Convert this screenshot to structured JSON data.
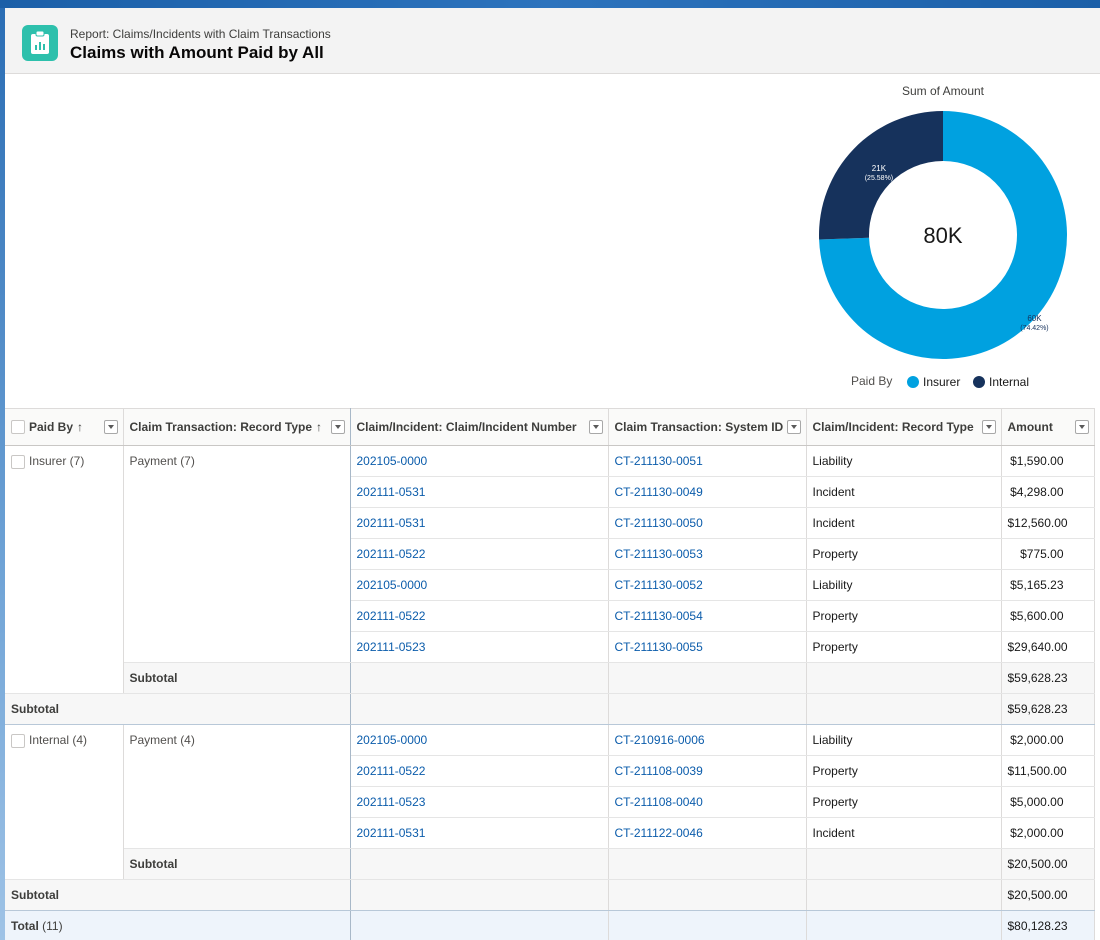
{
  "header": {
    "subtitle": "Report: Claims/Incidents with Claim Transactions",
    "title": "Claims with Amount Paid by All"
  },
  "chart_data": {
    "type": "donut",
    "title": "Sum of Amount",
    "center_label": "80K",
    "legend_title": "Paid By",
    "legend_position": "bottom",
    "series": [
      {
        "name": "Insurer",
        "value": 59628.23,
        "label": "60K",
        "percent_label": "(74.42%)",
        "color": "#00a1e0"
      },
      {
        "name": "Internal",
        "value": 20500.0,
        "label": "21K",
        "percent_label": "(25.58%)",
        "color": "#16325c"
      }
    ]
  },
  "table": {
    "columns": [
      {
        "label": "Paid By",
        "sort": "↑",
        "checkbox": true
      },
      {
        "label": "Claim Transaction: Record Type",
        "sort": "↑"
      },
      {
        "label": "Claim/Incident: Claim/Incident Number",
        "sort": ""
      },
      {
        "label": "Claim Transaction: System ID",
        "sort": ""
      },
      {
        "label": "Claim/Incident: Record Type",
        "sort": ""
      },
      {
        "label": "Amount",
        "sort": ""
      }
    ],
    "groups": [
      {
        "paid_by": "Insurer (7)",
        "record_type": "Payment (7)",
        "rows": [
          {
            "number": "202105-0000",
            "system_id": "CT-211130-0051",
            "type": "Liability",
            "amount": "$1,590.00"
          },
          {
            "number": "202111-0531",
            "system_id": "CT-211130-0049",
            "type": "Incident",
            "amount": "$4,298.00"
          },
          {
            "number": "202111-0531",
            "system_id": "CT-211130-0050",
            "type": "Incident",
            "amount": "$12,560.00"
          },
          {
            "number": "202111-0522",
            "system_id": "CT-211130-0053",
            "type": "Property",
            "amount": "$775.00"
          },
          {
            "number": "202105-0000",
            "system_id": "CT-211130-0052",
            "type": "Liability",
            "amount": "$5,165.23"
          },
          {
            "number": "202111-0522",
            "system_id": "CT-211130-0054",
            "type": "Property",
            "amount": "$5,600.00"
          },
          {
            "number": "202111-0523",
            "system_id": "CT-211130-0055",
            "type": "Property",
            "amount": "$29,640.00"
          }
        ],
        "subtotal_label": "Subtotal",
        "subtotal": "$59,628.23",
        "group_subtotal_label": "Subtotal",
        "group_subtotal": "$59,628.23"
      },
      {
        "paid_by": "Internal (4)",
        "record_type": "Payment (4)",
        "rows": [
          {
            "number": "202105-0000",
            "system_id": "CT-210916-0006",
            "type": "Liability",
            "amount": "$2,000.00"
          },
          {
            "number": "202111-0522",
            "system_id": "CT-211108-0039",
            "type": "Property",
            "amount": "$11,500.00"
          },
          {
            "number": "202111-0523",
            "system_id": "CT-211108-0040",
            "type": "Property",
            "amount": "$5,000.00"
          },
          {
            "number": "202111-0531",
            "system_id": "CT-211122-0046",
            "type": "Incident",
            "amount": "$2,000.00"
          }
        ],
        "subtotal_label": "Subtotal",
        "subtotal": "$20,500.00",
        "group_subtotal_label": "Subtotal",
        "group_subtotal": "$20,500.00"
      }
    ],
    "total_label": "Total",
    "total_count": "(11)",
    "total": "$80,128.23"
  }
}
